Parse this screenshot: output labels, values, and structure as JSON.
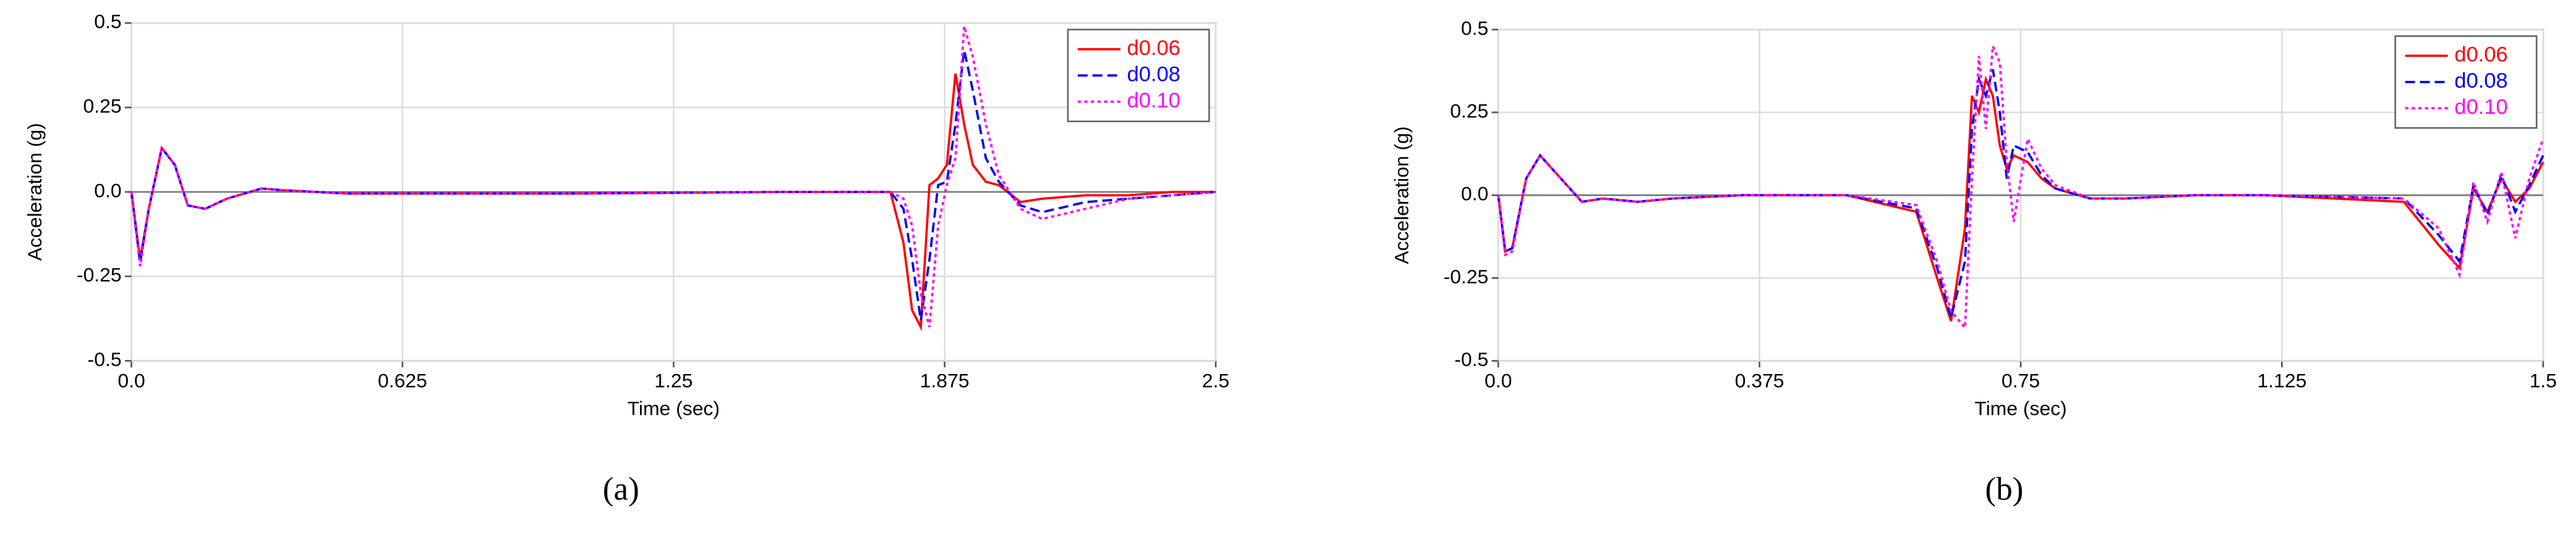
{
  "chart_data": [
    {
      "type": "line",
      "caption": "(a)",
      "xlabel": "Time (sec)",
      "ylabel": "Acceleration (g)",
      "legend": "upper right",
      "grid": true,
      "xlim": [
        0,
        2.5
      ],
      "ylim": [
        -0.5,
        0.5
      ],
      "xticks": [
        {
          "value": 0,
          "label": "0.0"
        },
        0.625,
        1.25,
        1.875,
        2.5
      ],
      "yticks": [
        -0.5,
        -0.25,
        {
          "value": 0,
          "label": "0.0"
        },
        0.25,
        0.5
      ],
      "x": [
        0,
        0.02,
        0.04,
        0.07,
        0.1,
        0.13,
        0.17,
        0.22,
        0.3,
        0.35,
        0.5,
        1.0,
        1.5,
        1.75,
        1.78,
        1.8,
        1.82,
        1.84,
        1.86,
        1.88,
        1.9,
        1.92,
        1.94,
        1.97,
        2.0,
        2.05,
        2.1,
        2.2,
        2.3,
        2.4,
        2.5
      ],
      "series": [
        {
          "name": "d0.06",
          "color": "#ff0000",
          "style": "solid",
          "values": [
            0,
            -0.2,
            -0.05,
            0.13,
            0.08,
            -0.04,
            -0.05,
            -0.02,
            0.01,
            0.005,
            -0.005,
            -0.005,
            0,
            0,
            -0.15,
            -0.35,
            -0.4,
            0.02,
            0.04,
            0.08,
            0.35,
            0.2,
            0.08,
            0.03,
            0.02,
            -0.03,
            -0.02,
            -0.01,
            -0.01,
            0,
            0
          ]
        },
        {
          "name": "d0.08",
          "color": "#0000ff",
          "style": "dashed",
          "values": [
            0,
            -0.21,
            -0.05,
            0.13,
            0.08,
            -0.04,
            -0.05,
            -0.02,
            0.01,
            0.005,
            -0.005,
            -0.005,
            0,
            0,
            -0.05,
            -0.2,
            -0.38,
            -0.2,
            0.02,
            0.03,
            0.2,
            0.42,
            0.3,
            0.1,
            0.03,
            -0.04,
            -0.06,
            -0.03,
            -0.02,
            -0.01,
            0
          ]
        },
        {
          "name": "d0.10",
          "color": "#ff00ff",
          "style": "dotted",
          "values": [
            0,
            -0.22,
            -0.05,
            0.13,
            0.08,
            -0.04,
            -0.05,
            -0.02,
            0.01,
            0.005,
            -0.005,
            -0.005,
            0,
            0,
            -0.02,
            -0.1,
            -0.3,
            -0.4,
            -0.1,
            0.02,
            0.1,
            0.49,
            0.4,
            0.2,
            0.05,
            -0.05,
            -0.08,
            -0.05,
            -0.02,
            -0.01,
            0
          ]
        }
      ]
    },
    {
      "type": "line",
      "caption": "(b)",
      "xlabel": "Time (sec)",
      "ylabel": "Acceleration (g)",
      "legend": "upper right",
      "grid": true,
      "xlim": [
        0,
        1.5
      ],
      "ylim": [
        -0.5,
        0.5
      ],
      "xticks": [
        {
          "value": 0,
          "label": "0.0"
        },
        0.375,
        0.75,
        1.125,
        1.5
      ],
      "yticks": [
        -0.5,
        -0.25,
        {
          "value": 0,
          "label": "0.0"
        },
        0.25,
        0.5
      ],
      "x": [
        0,
        0.01,
        0.02,
        0.04,
        0.06,
        0.09,
        0.12,
        0.15,
        0.2,
        0.25,
        0.35,
        0.5,
        0.6,
        0.63,
        0.65,
        0.67,
        0.68,
        0.69,
        0.7,
        0.71,
        0.72,
        0.73,
        0.74,
        0.76,
        0.78,
        0.8,
        0.85,
        0.9,
        1.0,
        1.1,
        1.3,
        1.35,
        1.38,
        1.4,
        1.42,
        1.44,
        1.46,
        1.48,
        1.5
      ],
      "series": [
        {
          "name": "d0.06",
          "color": "#ff0000",
          "style": "solid",
          "values": [
            0,
            -0.17,
            -0.16,
            0.05,
            0.12,
            0.05,
            -0.02,
            -0.01,
            -0.02,
            -0.01,
            0,
            0,
            -0.05,
            -0.25,
            -0.38,
            -0.1,
            0.3,
            0.25,
            0.35,
            0.3,
            0.15,
            0.08,
            0.12,
            0.1,
            0.05,
            0.02,
            -0.01,
            -0.01,
            0,
            0,
            -0.02,
            -0.15,
            -0.22,
            0.02,
            -0.05,
            0.05,
            -0.02,
            0.02,
            0.1
          ]
        },
        {
          "name": "d0.08",
          "color": "#0000ff",
          "style": "dashed",
          "values": [
            0,
            -0.17,
            -0.16,
            0.05,
            0.12,
            0.05,
            -0.02,
            -0.01,
            -0.02,
            -0.01,
            0,
            0,
            -0.04,
            -0.22,
            -0.37,
            -0.2,
            0.2,
            0.35,
            0.3,
            0.38,
            0.25,
            0.05,
            0.15,
            0.13,
            0.06,
            0.02,
            -0.01,
            -0.01,
            0,
            0,
            -0.01,
            -0.12,
            -0.2,
            0.03,
            -0.06,
            0.06,
            -0.05,
            0.03,
            0.12
          ]
        },
        {
          "name": "d0.10",
          "color": "#ff00ff",
          "style": "dotted",
          "values": [
            0,
            -0.18,
            -0.17,
            0.05,
            0.12,
            0.05,
            -0.02,
            -0.01,
            -0.02,
            -0.01,
            0,
            0,
            -0.03,
            -0.2,
            -0.35,
            -0.4,
            0.05,
            0.42,
            0.2,
            0.45,
            0.4,
            0.1,
            -0.08,
            0.17,
            0.08,
            0.03,
            -0.01,
            -0.01,
            0,
            0,
            -0.01,
            -0.1,
            -0.24,
            0.04,
            -0.08,
            0.07,
            -0.13,
            0.05,
            0.17
          ]
        }
      ]
    }
  ]
}
